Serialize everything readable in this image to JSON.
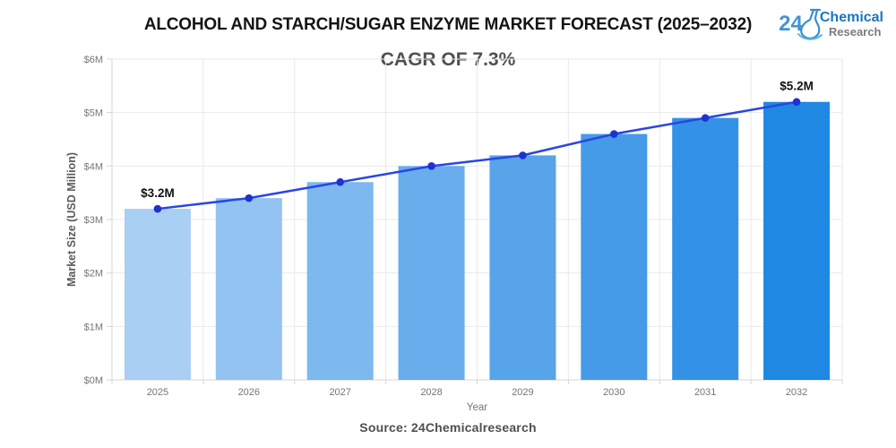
{
  "logo": {
    "number": "24",
    "name": "Chemical",
    "sub": "Research",
    "flask_color": "#3a8fd0"
  },
  "footer": {
    "source": "Source: 24Chemicalresearch"
  },
  "chart_data": {
    "type": "bar",
    "overlay": "line",
    "title": "ALCOHOL AND STARCH/SUGAR ENZYME MARKET FORECAST (2025–2032)",
    "subtitle": "CAGR OF 7.3%",
    "categories": [
      "2025",
      "2026",
      "2027",
      "2028",
      "2029",
      "2030",
      "2031",
      "2032"
    ],
    "values": [
      3.2,
      3.4,
      3.7,
      4.0,
      4.2,
      4.6,
      4.9,
      5.2
    ],
    "xlabel": "Year",
    "ylabel": "Market Size (USD Million)",
    "ylim": [
      0,
      6
    ],
    "yticks": [
      0,
      1,
      2,
      3,
      4,
      5,
      6
    ],
    "ytick_labels": [
      "$0M",
      "$1M",
      "$2M",
      "$3M",
      "$4M",
      "$5M",
      "$6M"
    ],
    "grid": true,
    "legend": "none",
    "bar_colors": [
      "#A9CFF3",
      "#93C3F0",
      "#7DB8EE",
      "#69ADEC",
      "#57A4EA",
      "#459BE7",
      "#3392E5",
      "#1E88E2"
    ],
    "line_color": "#2946E4",
    "marker_color": "#1D33CF",
    "tick_color": "#757575",
    "grid_color": "#e9e9e9",
    "axis_color": "#d6d6d6",
    "annotations": [
      {
        "category": "2025",
        "text": "$3.2M"
      },
      {
        "category": "2032",
        "text": "$5.2M"
      }
    ]
  }
}
